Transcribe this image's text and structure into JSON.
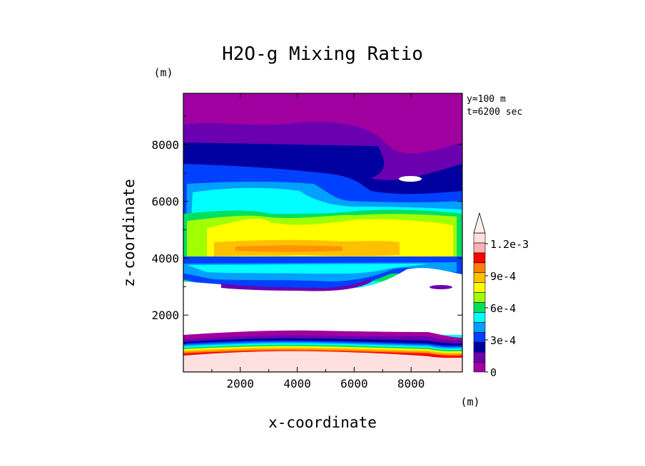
{
  "chart_data": {
    "type": "heatmap",
    "title": "H2O-g Mixing Ratio",
    "xlabel": "x-coordinate",
    "ylabel": "z-coordinate",
    "xunit": "(m)",
    "yunit": "(m)",
    "info_lines": [
      "y=100 m",
      "t=6200 sec"
    ],
    "xlim": [
      0,
      9800
    ],
    "ylim": [
      0,
      9800
    ],
    "xticks": [
      2000,
      4000,
      6000,
      8000
    ],
    "yticks": [
      2000,
      4000,
      6000,
      8000
    ],
    "xtick_labels": [
      "2000",
      "4000",
      "6000",
      "8000"
    ],
    "ytick_labels": [
      "2000",
      "4000",
      "6000",
      "8000"
    ],
    "colorbar": {
      "min": 0,
      "max": 0.0013,
      "extend": "max",
      "labels": [
        "0",
        "3e-4",
        "6e-4",
        "9e-4",
        "1.2e-3"
      ],
      "label_values": [
        0,
        0.0003,
        0.0006,
        0.0009,
        0.0012
      ],
      "colors": [
        "#a000a0",
        "#6a00b0",
        "#0000a0",
        "#0040ff",
        "#00a0ff",
        "#00ffff",
        "#00e060",
        "#a0ff00",
        "#ffff00",
        "#ffc000",
        "#ff8000",
        "#ff0000",
        "#ffb0b0",
        "#ffe0e0"
      ]
    },
    "levels_summary": [
      {
        "z_range": [
          0,
          600
        ],
        "value": "> 1.2e-3"
      },
      {
        "z_range": [
          600,
          1400
        ],
        "value": "gradient 1.2e-3 to 0"
      },
      {
        "z_range": [
          1400,
          3200
        ],
        "value": "0"
      },
      {
        "z_range": [
          3200,
          5500
        ],
        "value": "4e-4 to 9e-4"
      },
      {
        "z_range": [
          5500,
          7200
        ],
        "value": "2e-4 to 6e-4"
      },
      {
        "z_range": [
          7200,
          9800
        ],
        "value": "0 to 2e-4"
      }
    ]
  },
  "colors": {
    "background": "#ffffff",
    "frame": "#000000"
  }
}
